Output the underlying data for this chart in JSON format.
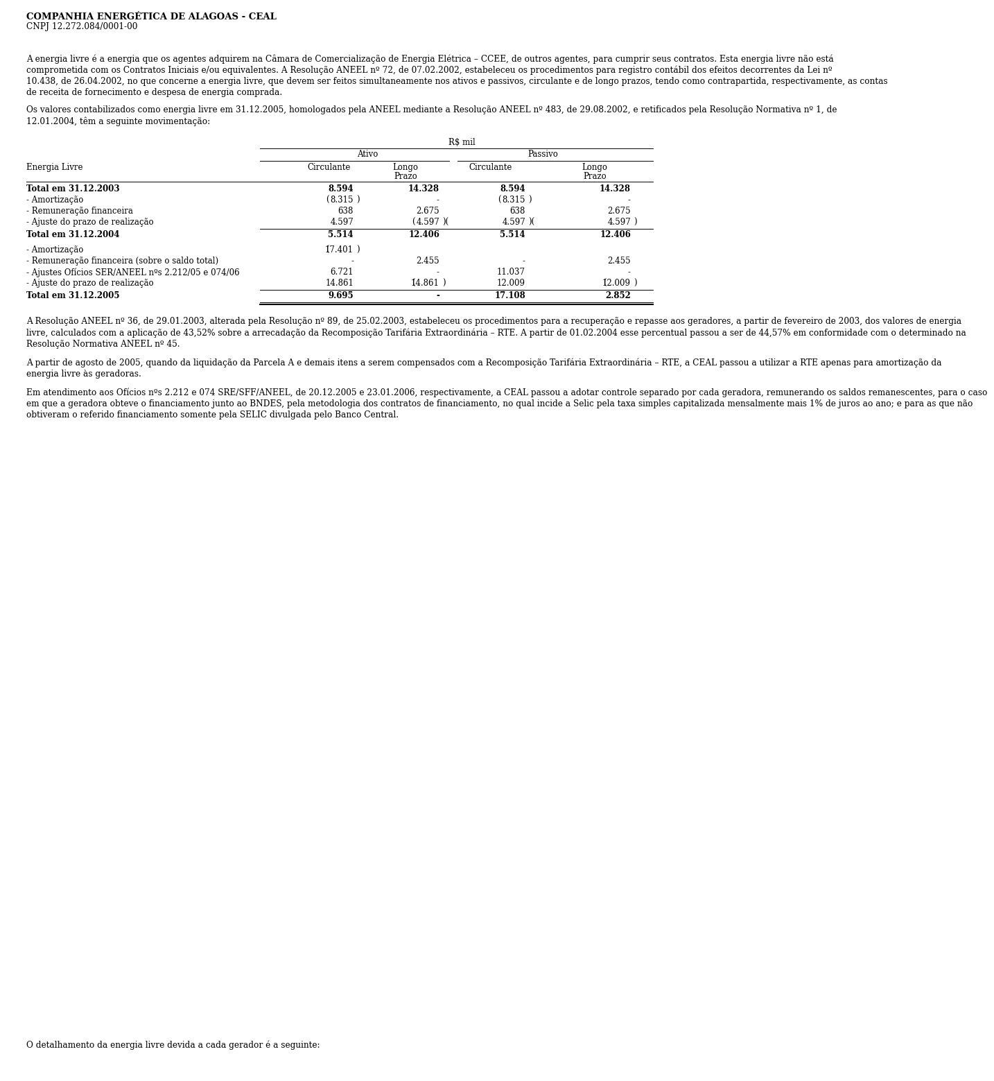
{
  "company_name": "COMPANHIA ENERGÉTICA DE ALAGOAS - CEAL",
  "cnpj": "CNPJ 12.272.084/0001-00",
  "rows": [
    {
      "label": "Total em 31.12.2003",
      "bold": true,
      "c1": "8.594",
      "c2": "14.328",
      "c3": "8.594",
      "c4": "14.328",
      "c1_pre": "",
      "c1_post": "",
      "c2_pre": "",
      "c2_post": "",
      "c3_pre": "",
      "c3_post": "",
      "c4_pre": "",
      "c4_post": "",
      "line_before": true,
      "line_after": false,
      "double_after": false,
      "gap_after": false
    },
    {
      "label": "- Amortização",
      "bold": false,
      "c1": "8.315",
      "c2": "-",
      "c3": "8.315",
      "c4": "-",
      "c1_pre": "(",
      "c1_post": ")",
      "c2_pre": "",
      "c2_post": "",
      "c3_pre": "(",
      "c3_post": ")",
      "c4_pre": "",
      "c4_post": "",
      "line_before": false,
      "line_after": false,
      "double_after": false,
      "gap_after": false
    },
    {
      "label": "- Remuneração financeira",
      "bold": false,
      "c1": "638",
      "c2": "2.675",
      "c3": "638",
      "c4": "2.675",
      "c1_pre": "",
      "c1_post": "",
      "c2_pre": "",
      "c2_post": "",
      "c3_pre": "",
      "c3_post": "",
      "c4_pre": "",
      "c4_post": "",
      "line_before": false,
      "line_after": false,
      "double_after": false,
      "gap_after": false
    },
    {
      "label": "- Ajuste do prazo de realização",
      "bold": false,
      "c1": "4.597",
      "c2": "4.597",
      "c3": "4.597",
      "c4": "4.597",
      "c1_pre": "",
      "c1_post": "",
      "c2_pre": "(",
      "c2_post": ")(",
      "c3_pre": "",
      "c3_post": ")(",
      "c4_pre": "",
      "c4_post": ")",
      "line_before": false,
      "line_after": true,
      "double_after": false,
      "gap_after": false
    },
    {
      "label": "Total em 31.12.2004",
      "bold": true,
      "c1": "5.514",
      "c2": "12.406",
      "c3": "5.514",
      "c4": "12.406",
      "c1_pre": "",
      "c1_post": "",
      "c2_pre": "",
      "c2_post": "",
      "c3_pre": "",
      "c3_post": "",
      "c4_pre": "",
      "c4_post": "",
      "line_before": false,
      "line_after": false,
      "double_after": false,
      "gap_after": true
    },
    {
      "label": "- Amortização",
      "bold": false,
      "c1": "17.401",
      "c2": "",
      "c3": "",
      "c4": "",
      "c1_pre": "(",
      "c1_post": ")",
      "c2_pre": "",
      "c2_post": "",
      "c3_pre": "(",
      "c3_post": ")",
      "c4_pre": "",
      "c4_post": "",
      "line_before": false,
      "line_after": false,
      "double_after": false,
      "gap_after": false
    },
    {
      "label": "- Remuneração financeira (sobre o saldo total)",
      "bold": false,
      "c1": "-",
      "c2": "2.455",
      "c3": "-",
      "c4": "2.455",
      "c1_pre": "",
      "c1_post": "",
      "c2_pre": "",
      "c2_post": "",
      "c3_pre": "",
      "c3_post": "",
      "c4_pre": "",
      "c4_post": "",
      "line_before": false,
      "line_after": false,
      "double_after": false,
      "gap_after": false
    },
    {
      "label": "- Ajustes Ofícios SER/ANEEL nºs 2.212/05 e 074/06",
      "bold": false,
      "c1": "6.721",
      "c2": "-",
      "c3": "11.037",
      "c4": "-",
      "c1_pre": "",
      "c1_post": "",
      "c2_pre": "",
      "c2_post": "",
      "c3_pre": "",
      "c3_post": "",
      "c4_pre": "",
      "c4_post": "",
      "line_before": false,
      "line_after": false,
      "double_after": false,
      "gap_after": false
    },
    {
      "label": "- Ajuste do prazo de realização",
      "bold": false,
      "c1": "14.861",
      "c2": "14.861",
      "c3": "12.009",
      "c4": "12.009",
      "c1_pre": "",
      "c1_post": "",
      "c2_pre": "(",
      "c2_post": ")",
      "c3_pre": "",
      "c3_post": "",
      "c4_pre": "(",
      "c4_post": ")",
      "line_before": false,
      "line_after": true,
      "double_after": false,
      "gap_after": false
    },
    {
      "label": "Total em 31.12.2005",
      "bold": true,
      "c1": "9.695",
      "c2": "-",
      "c3": "17.108",
      "c4": "2.852",
      "c1_pre": "",
      "c1_post": "",
      "c2_pre": "",
      "c2_post": "",
      "c3_pre": "",
      "c3_post": "",
      "c4_pre": "",
      "c4_post": "",
      "line_before": false,
      "line_after": false,
      "double_after": true,
      "gap_after": false
    }
  ],
  "para1_lines": [
    "A energia livre é a energia que os agentes adquirem na Câmara de Comercialização de Energia Elétrica – CCEE, de outros agentes, para cumprir seus contratos. Esta energia livre não está",
    "comprometida com os Contratos Iniciais e/ou equivalentes. A Resolução ANEEL nº 72, de 07.02.2002, estabeleceu os procedimentos para registro contábil dos efeitos decorrentes da Lei nº",
    "10.438, de 26.04.2002, no que concerne a energia livre, que devem ser feitos simultaneamente nos ativos e passivos, circulante e de longo prazos, tendo como contrapartida, respectivamente, as contas",
    "de receita de fornecimento e despesa de energia comprada."
  ],
  "para2_lines": [
    "Os valores contabilizados como energia livre em 31.12.2005, homologados pela ANEEL mediante a Resolução ANEEL nº 483, de 29.08.2002, e retificados pela Resolução Normativa nº 1, de",
    "12.01.2004, têm a seguinte movimentação:"
  ],
  "para3_lines": [
    "A Resolução ANEEL nº 36, de 29.01.2003, alterada pela Resolução nº 89, de 25.02.2003, estabeleceu os procedimentos para a recuperação e repasse aos geradores, a partir de fevereiro de 2003, dos valores de energia",
    "livre, calculados com a aplicação de 43,52% sobre a arrecadação da Recomposição Tarifária Extraordinária – RTE. A partir de 01.02.2004 esse percentual passou a ser de 44,57% em conformidade com o determinado na",
    "Resolução Normativa ANEEL nº 45."
  ],
  "para4_lines": [
    "A partir de agosto de 2005, quando da liquidação da Parcela A e demais itens a serem compensados com a Recomposição Tarifária Extraordinária – RTE, a CEAL passou a utilizar a RTE apenas para amortização da",
    "energia livre às geradoras."
  ],
  "para5_lines": [
    "Em atendimento aos Ofícios nºs 2.212 e 074 SRE/SFF/ANEEL, de 20.12.2005 e 23.01.2006, respectivamente, a CEAL passou a adotar controle separado por cada geradora, remunerando os saldos remanescentes, para o caso",
    "em que a geradora obteve o financiamento junto ao BNDES, pela metodologia dos contratos de financiamento, no qual incide a Selic pela taxa simples capitalizada mensalmente mais 1% de juros ao ano; e para as que não",
    "obtiveram o referido financiamento somente pela SELIC divulgada pelo Banco Central."
  ],
  "para6": "O detalhamento da energia livre devida a cada gerador é a seguinte:"
}
